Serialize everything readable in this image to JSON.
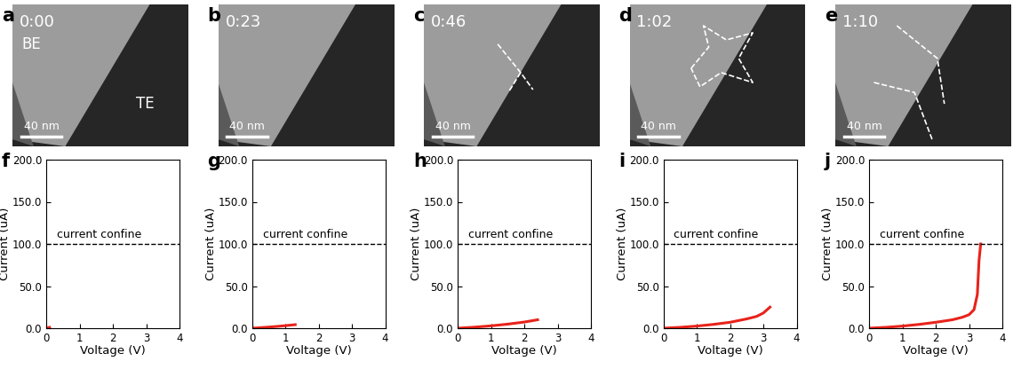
{
  "images": [
    {
      "panel_label": "a",
      "time": "0:00",
      "texts": [
        "BE",
        "TE"
      ],
      "scale_bar": "40 nm"
    },
    {
      "panel_label": "b",
      "time": "0:23",
      "texts": [],
      "scale_bar": "40 nm"
    },
    {
      "panel_label": "c",
      "time": "0:46",
      "texts": [],
      "scale_bar": "40 nm"
    },
    {
      "panel_label": "d",
      "time": "1:02",
      "texts": [],
      "scale_bar": "40 nm"
    },
    {
      "panel_label": "e",
      "time": "1:10",
      "texts": [],
      "scale_bar": "40 nm"
    }
  ],
  "chart_data": [
    {
      "type": "line",
      "panel_label": "f",
      "x_label": "Voltage (V)",
      "y_label": "Current (uA)",
      "xlim": [
        0,
        4
      ],
      "ylim": [
        0,
        200
      ],
      "xticks": [
        0,
        1,
        2,
        3,
        4
      ],
      "yticks": [
        {
          "value": 0,
          "label": "0.0"
        },
        {
          "value": 50,
          "label": "50.0"
        },
        {
          "value": 100,
          "label": "100.0"
        },
        {
          "value": 150,
          "label": "150.0"
        },
        {
          "value": 200,
          "label": "200.0"
        }
      ],
      "annotations": [
        {
          "text": "current confine",
          "y": 100,
          "line_style": "dashed",
          "color": "#000000"
        }
      ],
      "series": [
        {
          "color": "#e8231a",
          "x": [
            0,
            0.05,
            0.1
          ],
          "values": [
            0,
            0.5,
            1.0
          ]
        }
      ]
    },
    {
      "type": "line",
      "panel_label": "g",
      "x_label": "Voltage (V)",
      "y_label": "Current (uA)",
      "xlim": [
        0,
        4
      ],
      "ylim": [
        0,
        200
      ],
      "xticks": [
        0,
        1,
        2,
        3,
        4
      ],
      "yticks": [
        {
          "value": 0,
          "label": "0.0"
        },
        {
          "value": 50,
          "label": "50.0"
        },
        {
          "value": 100,
          "label": "100.0"
        },
        {
          "value": 150,
          "label": "150.0"
        },
        {
          "value": 200,
          "label": "200.0"
        }
      ],
      "annotations": [
        {
          "text": "current confine",
          "y": 100,
          "line_style": "dashed",
          "color": "#000000"
        }
      ],
      "series": [
        {
          "color": "#e8231a",
          "x": [
            0,
            0.25,
            0.5,
            0.75,
            1.0,
            1.3
          ],
          "values": [
            0,
            0.6,
            1.3,
            2.1,
            3.0,
            4.2
          ]
        }
      ]
    },
    {
      "type": "line",
      "panel_label": "h",
      "x_label": "Voltage (V)",
      "y_label": "Current (uA)",
      "xlim": [
        0,
        4
      ],
      "ylim": [
        0,
        200
      ],
      "xticks": [
        0,
        1,
        2,
        3,
        4
      ],
      "yticks": [
        {
          "value": 0,
          "label": "0.0"
        },
        {
          "value": 50,
          "label": "50.0"
        },
        {
          "value": 100,
          "label": "100.0"
        },
        {
          "value": 150,
          "label": "150.0"
        },
        {
          "value": 200,
          "label": "200.0"
        }
      ],
      "annotations": [
        {
          "text": "current confine",
          "y": 100,
          "line_style": "dashed",
          "color": "#000000"
        }
      ],
      "series": [
        {
          "color": "#e8231a",
          "x": [
            0,
            0.5,
            1.0,
            1.5,
            2.0,
            2.4
          ],
          "values": [
            0,
            1.2,
            2.8,
            4.8,
            7.3,
            10
          ]
        }
      ]
    },
    {
      "type": "line",
      "panel_label": "i",
      "x_label": "Voltage (V)",
      "y_label": "Current (uA)",
      "xlim": [
        0,
        4
      ],
      "ylim": [
        0,
        200
      ],
      "xticks": [
        0,
        1,
        2,
        3,
        4
      ],
      "yticks": [
        {
          "value": 0,
          "label": "0.0"
        },
        {
          "value": 50,
          "label": "50.0"
        },
        {
          "value": 100,
          "label": "100.0"
        },
        {
          "value": 150,
          "label": "150.0"
        },
        {
          "value": 200,
          "label": "200.0"
        }
      ],
      "annotations": [
        {
          "text": "current confine",
          "y": 100,
          "line_style": "dashed",
          "color": "#000000"
        }
      ],
      "series": [
        {
          "color": "#e8231a",
          "x": [
            0,
            0.5,
            1.0,
            1.5,
            2.0,
            2.5,
            2.8,
            3.0,
            3.2
          ],
          "values": [
            0,
            1,
            2.5,
            4.5,
            7,
            11,
            14,
            18,
            25
          ]
        }
      ]
    },
    {
      "type": "line",
      "panel_label": "j",
      "x_label": "Voltage (V)",
      "y_label": "Current (uA)",
      "xlim": [
        0,
        4
      ],
      "ylim": [
        0,
        200
      ],
      "xticks": [
        0,
        1,
        2,
        3,
        4
      ],
      "yticks": [
        {
          "value": 0,
          "label": "0.0"
        },
        {
          "value": 50,
          "label": "50.0"
        },
        {
          "value": 100,
          "label": "100.0"
        },
        {
          "value": 150,
          "label": "150.0"
        },
        {
          "value": 200,
          "label": "200.0"
        }
      ],
      "annotations": [
        {
          "text": "current confine",
          "y": 100,
          "line_style": "dashed",
          "color": "#000000"
        }
      ],
      "series": [
        {
          "color": "#e8231a",
          "x": [
            0,
            0.5,
            1.0,
            1.5,
            2.0,
            2.5,
            2.8,
            3.0,
            3.15,
            3.25,
            3.3,
            3.35
          ],
          "values": [
            0,
            1,
            2.5,
            4.5,
            7,
            10,
            13,
            16,
            22,
            40,
            80,
            100
          ]
        }
      ]
    }
  ]
}
